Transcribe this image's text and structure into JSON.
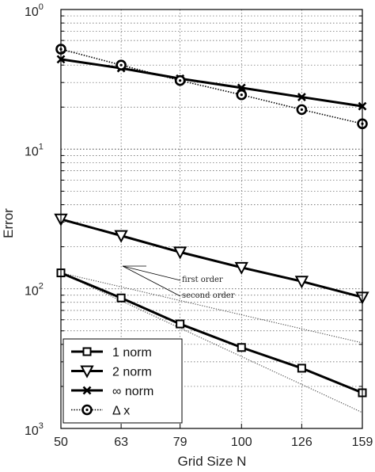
{
  "chart_data": {
    "type": "line",
    "xlabel": "Grid Size N",
    "ylabel": "Error",
    "x": [
      50,
      63,
      79,
      100,
      126,
      159
    ],
    "x_tick_labels": [
      "50",
      "63",
      "79",
      "100",
      "126",
      "159"
    ],
    "y_scale": "log",
    "ylim": [
      0.001,
      1
    ],
    "y_ticks": [
      {
        "base": "10",
        "exp": "0",
        "value": 1
      },
      {
        "base": "10",
        "exp": "1",
        "value": 0.1
      },
      {
        "base": "10",
        "exp": "2",
        "value": 0.01
      },
      {
        "base": "10",
        "exp": "3",
        "value": 0.001
      }
    ],
    "grid": true,
    "legend_position": "bottom-left",
    "series": [
      {
        "name": "1 norm",
        "marker": "square",
        "line": "solid",
        "values": [
          0.013,
          0.0086,
          0.0056,
          0.0038,
          0.0027,
          0.0018
        ]
      },
      {
        "name": "2 norm",
        "marker": "triangle-down",
        "line": "solid",
        "values": [
          0.0315,
          0.024,
          0.0183,
          0.0142,
          0.0113,
          0.0087
        ]
      },
      {
        "name": "∞ norm",
        "marker": "x",
        "line": "solid",
        "values": [
          0.44,
          0.38,
          0.32,
          0.275,
          0.236,
          0.203
        ]
      },
      {
        "name": "Δ x",
        "marker": "circle",
        "line": "dotted",
        "values": [
          0.52,
          0.4,
          0.31,
          0.245,
          0.192,
          0.152
        ]
      }
    ],
    "reference_lines": [
      {
        "label": "first order",
        "x": [
          50,
          159
        ],
        "values": [
          0.013,
          0.0041
        ]
      },
      {
        "label": "second order",
        "x": [
          50,
          159
        ],
        "values": [
          0.013,
          0.0013
        ]
      }
    ]
  }
}
